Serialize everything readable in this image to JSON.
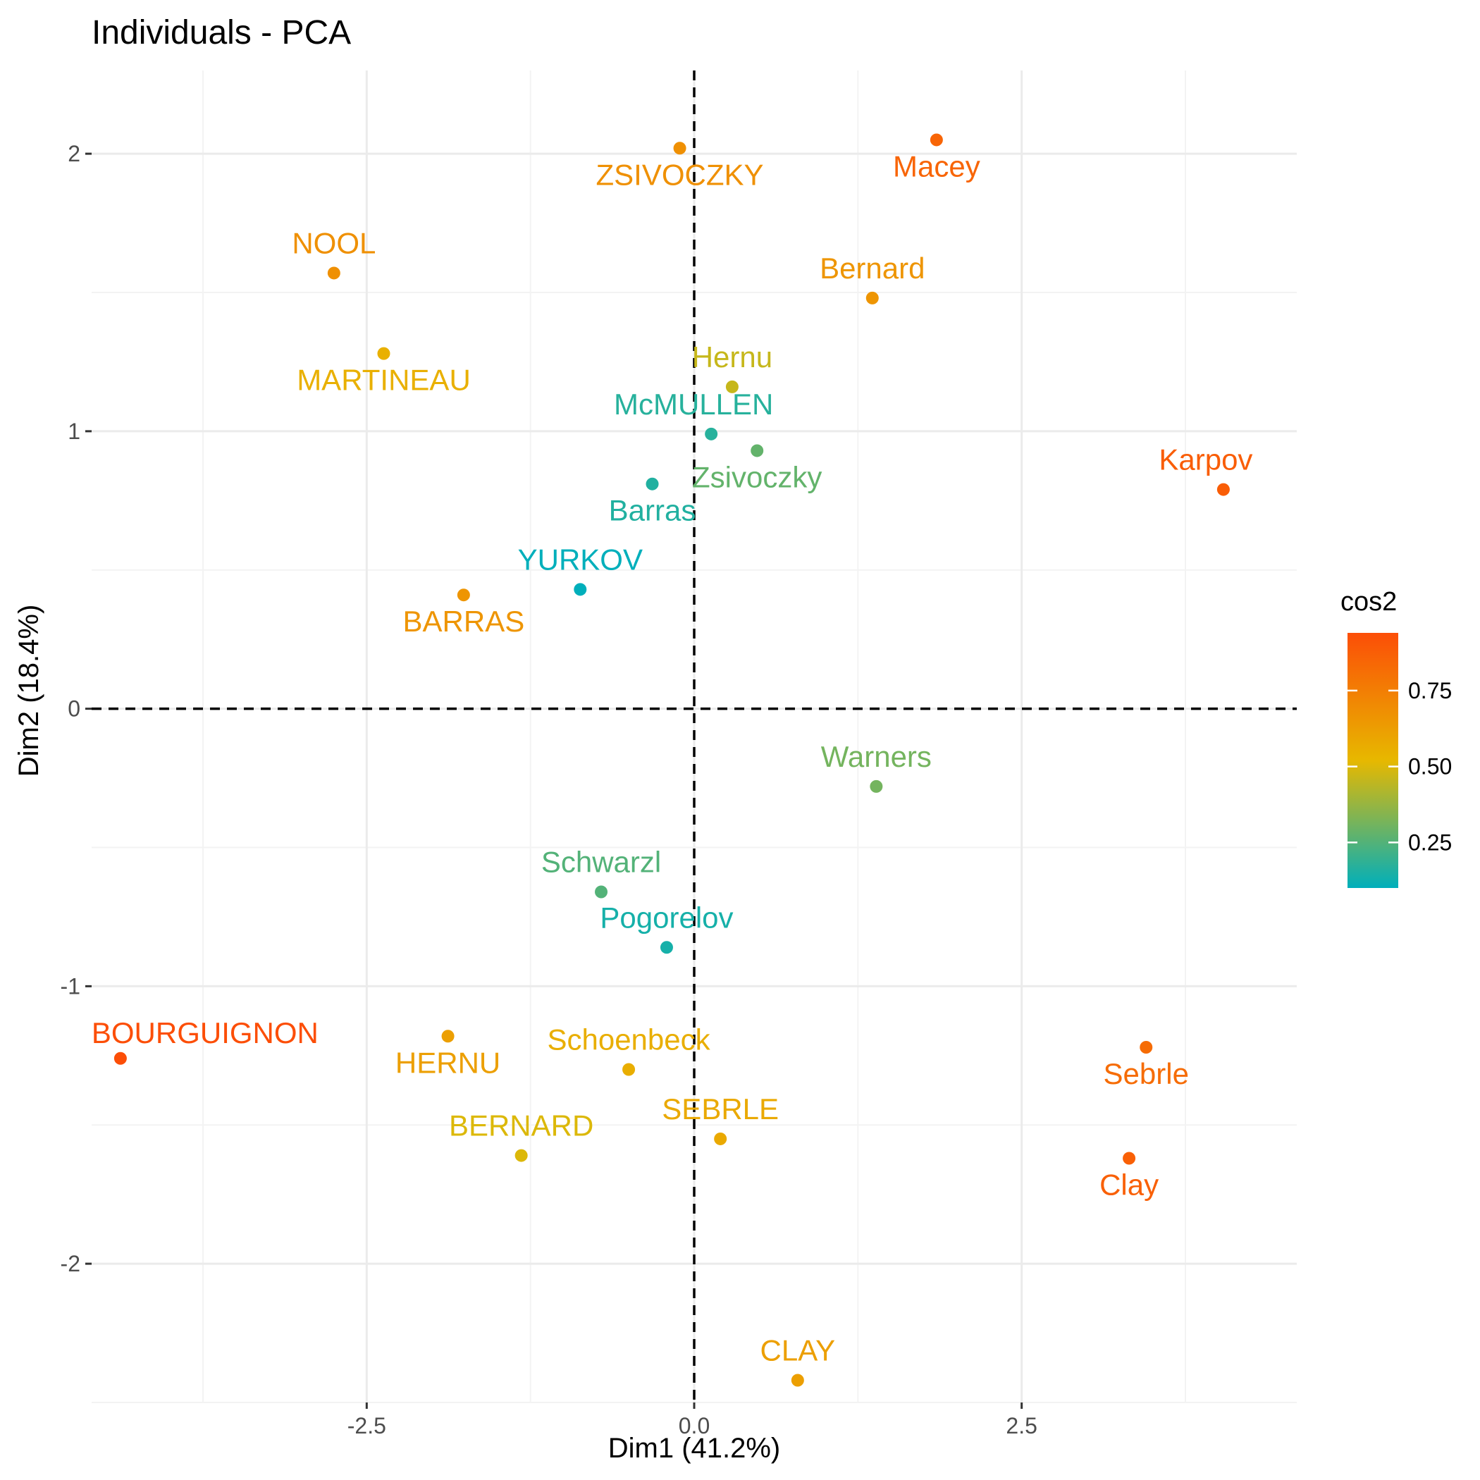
{
  "chart_data": {
    "type": "scatter",
    "title": "Individuals - PCA",
    "xlabel": "Dim1 (41.2%)",
    "ylabel": "Dim2 (18.4%)",
    "xlim": [
      -4.6,
      4.6
    ],
    "ylim": [
      -2.5,
      2.3
    ],
    "x_ticks": [
      -2.5,
      0.0,
      2.5
    ],
    "x_tick_labels": [
      "-2.5",
      "0.0",
      "2.5"
    ],
    "y_ticks": [
      -2,
      -1,
      0,
      1,
      2
    ],
    "y_tick_labels": [
      "-2",
      "-1",
      "0",
      "1",
      "2"
    ],
    "grid": true,
    "reference_lines": {
      "x": 0,
      "y": 0,
      "style": "dashed"
    },
    "color_variable": "cos2",
    "legend": {
      "title": "cos2",
      "position": "right",
      "ticks": [
        0.25,
        0.5,
        0.75
      ],
      "tick_labels": [
        "0.25",
        "0.50",
        "0.75"
      ],
      "range": [
        0.1,
        0.94
      ],
      "gradient_colors": [
        "#00AFBB",
        "#E7B800",
        "#FC4E07"
      ]
    },
    "points": [
      {
        "label": "ZSIVOCZKY",
        "x": -0.11,
        "y": 2.02,
        "cos2": 0.68,
        "label_pos": "below"
      },
      {
        "label": "Macey",
        "x": 1.85,
        "y": 2.05,
        "cos2": 0.85,
        "label_pos": "below"
      },
      {
        "label": "NOOL",
        "x": -2.75,
        "y": 1.57,
        "cos2": 0.68,
        "label_pos": "above"
      },
      {
        "label": "Bernard",
        "x": 1.36,
        "y": 1.48,
        "cos2": 0.66,
        "label_pos": "above"
      },
      {
        "label": "MARTINEAU",
        "x": -2.37,
        "y": 1.28,
        "cos2": 0.55,
        "label_pos": "below"
      },
      {
        "label": "Hernu",
        "x": 0.29,
        "y": 1.16,
        "cos2": 0.46,
        "label_pos": "above"
      },
      {
        "label": "McMULLEN",
        "x": 0.13,
        "y": 0.99,
        "cos2": 0.17,
        "label_pos": "above-left"
      },
      {
        "label": "Zsivoczky",
        "x": 0.48,
        "y": 0.93,
        "cos2": 0.28,
        "label_pos": "below"
      },
      {
        "label": "Karpov",
        "x": 4.04,
        "y": 0.79,
        "cos2": 0.88,
        "label_pos": "above-left"
      },
      {
        "label": "Barras",
        "x": -0.32,
        "y": 0.81,
        "cos2": 0.16,
        "label_pos": "below"
      },
      {
        "label": "YURKOV",
        "x": -0.87,
        "y": 0.43,
        "cos2": 0.1,
        "label_pos": "above"
      },
      {
        "label": "BARRAS",
        "x": -1.76,
        "y": 0.41,
        "cos2": 0.66,
        "label_pos": "below"
      },
      {
        "label": "Warners",
        "x": 1.39,
        "y": -0.28,
        "cos2": 0.31,
        "label_pos": "above"
      },
      {
        "label": "Schwarzl",
        "x": -0.71,
        "y": -0.66,
        "cos2": 0.25,
        "label_pos": "above"
      },
      {
        "label": "Pogorelov",
        "x": -0.21,
        "y": -0.86,
        "cos2": 0.14,
        "label_pos": "above"
      },
      {
        "label": "BOURGUIGNON",
        "x": -4.38,
        "y": -1.26,
        "cos2": 0.94,
        "label_pos": "above-right"
      },
      {
        "label": "HERNU",
        "x": -1.88,
        "y": -1.18,
        "cos2": 0.62,
        "label_pos": "below"
      },
      {
        "label": "Schoenbeck",
        "x": -0.5,
        "y": -1.3,
        "cos2": 0.56,
        "label_pos": "above"
      },
      {
        "label": "Sebrle",
        "x": 3.45,
        "y": -1.22,
        "cos2": 0.82,
        "label_pos": "below"
      },
      {
        "label": "BERNARD",
        "x": -1.32,
        "y": -1.61,
        "cos2": 0.5,
        "label_pos": "above"
      },
      {
        "label": "SEBRLE",
        "x": 0.2,
        "y": -1.55,
        "cos2": 0.58,
        "label_pos": "above"
      },
      {
        "label": "Clay",
        "x": 3.32,
        "y": -1.62,
        "cos2": 0.87,
        "label_pos": "below"
      },
      {
        "label": "CLAY",
        "x": 0.79,
        "y": -2.42,
        "cos2": 0.62,
        "label_pos": "above"
      }
    ]
  }
}
